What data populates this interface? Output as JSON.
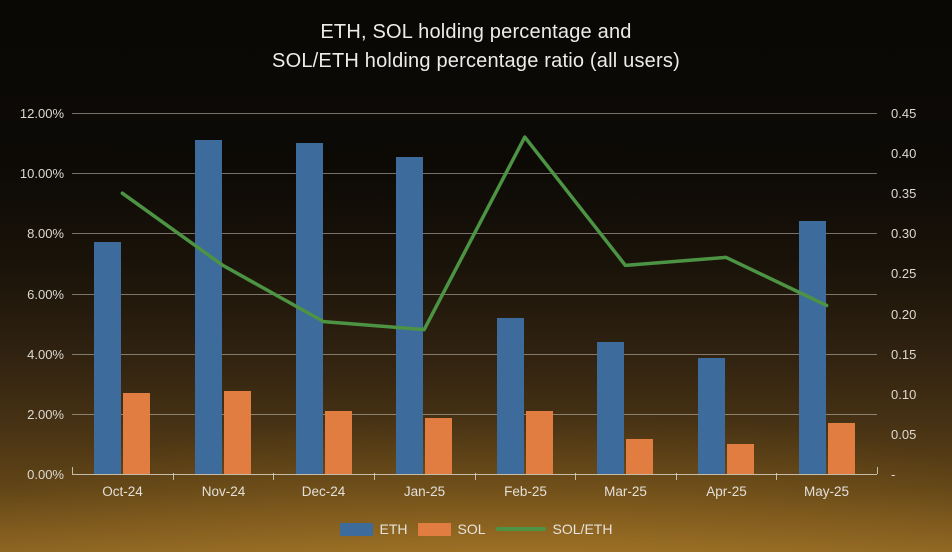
{
  "title": {
    "line1": "ETH, SOL holding percentage and",
    "line2": "SOL/ETH holding percentage ratio (all users)"
  },
  "chart_data": {
    "type": "bar",
    "subtype": "combo-bar-line-dual-axis",
    "title": "ETH, SOL holding percentage and SOL/ETH holding percentage ratio (all users)",
    "categories": [
      "Oct-24",
      "Nov-24",
      "Dec-24",
      "Jan-25",
      "Feb-25",
      "Mar-25",
      "Apr-25",
      "May-25"
    ],
    "series": [
      {
        "name": "ETH",
        "type": "bar",
        "axis": "left",
        "unit": "%",
        "color": "#3d6b9b",
        "values": [
          7.7,
          11.1,
          11.0,
          10.55,
          5.2,
          4.4,
          3.85,
          8.4
        ]
      },
      {
        "name": "SOL",
        "type": "bar",
        "axis": "left",
        "unit": "%",
        "color": "#e17d40",
        "values": [
          2.7,
          2.75,
          2.1,
          1.85,
          2.1,
          1.15,
          1.0,
          1.7
        ]
      },
      {
        "name": "SOL/ETH",
        "type": "line",
        "axis": "right",
        "color": "#4c9343",
        "values": [
          0.35,
          0.26,
          0.19,
          0.18,
          0.42,
          0.26,
          0.27,
          0.21
        ]
      }
    ],
    "left_axis": {
      "min": 0,
      "max": 12,
      "ticks_bottom_up": [
        "0.00%",
        "2.00%",
        "4.00%",
        "6.00%",
        "8.00%",
        "10.00%",
        "12.00%"
      ]
    },
    "right_axis": {
      "min": 0,
      "max": 0.45,
      "ticks_bottom_up": [
        "-",
        "0.05",
        "0.10",
        "0.15",
        "0.20",
        "0.25",
        "0.30",
        "0.35",
        "0.40",
        "0.45"
      ]
    },
    "grid": true,
    "legend_position": "bottom-center",
    "legend": [
      {
        "label": "ETH",
        "marker": "rect",
        "color": "#3d6b9b"
      },
      {
        "label": "SOL",
        "marker": "rect",
        "color": "#e17d40"
      },
      {
        "label": "SOL/ETH",
        "marker": "line",
        "color": "#4c9343"
      }
    ]
  },
  "colors": {
    "background_top": "#0a0805",
    "background_bottom": "#8a6322",
    "gridline": "rgba(216,212,202,0.5)",
    "text": "#e3e0da",
    "eth_bar": "#3d6b9b",
    "sol_bar": "#e17d40",
    "ratio_line": "#4c9343"
  }
}
